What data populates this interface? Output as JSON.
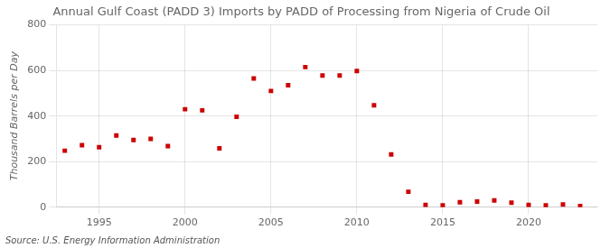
{
  "chart_data": {
    "type": "scatter",
    "title": "Annual Gulf Coast (PADD 3) Imports by PADD of Processing from Nigeria of Crude Oil",
    "ylabel": "Thousand Barrels per Day",
    "source": "Source: U.S. Energy Information Administration",
    "x": [
      1993,
      1994,
      1995,
      1996,
      1997,
      1998,
      1999,
      2000,
      2001,
      2002,
      2003,
      2004,
      2005,
      2006,
      2007,
      2008,
      2009,
      2010,
      2011,
      2012,
      2013,
      2014,
      2015,
      2016,
      2017,
      2018,
      2019,
      2020,
      2021,
      2022,
      2023
    ],
    "values": [
      248,
      272,
      263,
      315,
      295,
      300,
      268,
      430,
      425,
      258,
      397,
      565,
      510,
      535,
      615,
      578,
      578,
      598,
      447,
      232,
      68,
      10,
      8,
      22,
      25,
      30,
      20,
      10,
      8,
      12,
      5
    ],
    "color": "#cc0000",
    "marker": "square",
    "xlim": [
      1992.5,
      2024
    ],
    "xticks": [
      1995,
      2000,
      2005,
      2010,
      2015,
      2020
    ],
    "ylim": [
      0,
      800
    ],
    "yticks": [
      0,
      200,
      400,
      600,
      800
    ],
    "grid": true
  }
}
